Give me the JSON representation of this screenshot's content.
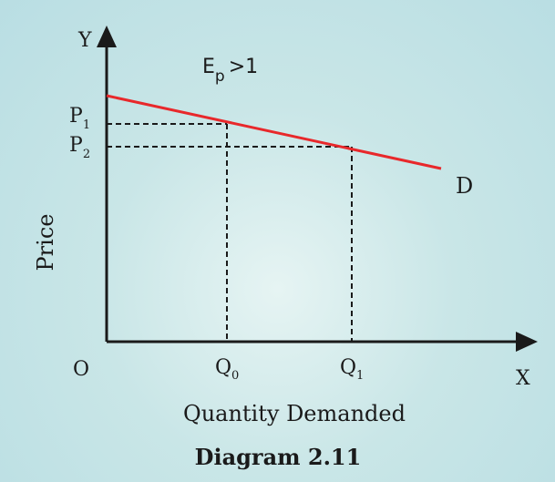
{
  "diagram": {
    "axis_y_label": "Y",
    "axis_x_label": "X",
    "origin_label": "O",
    "y_axis_title": "Price",
    "x_axis_title": "Quantity Demanded",
    "curve_label": "D",
    "elasticity_symbol": "E",
    "elasticity_subscript": "p",
    "elasticity_relation": ">1",
    "price_points": [
      {
        "letter": "P",
        "sub": "1"
      },
      {
        "letter": "P",
        "sub": "2"
      }
    ],
    "quantity_points": [
      {
        "letter": "Q",
        "sub": "0"
      },
      {
        "letter": "Q",
        "sub": "1"
      }
    ],
    "caption": "Diagram 2.11"
  },
  "colors": {
    "background": "#c9e6e7",
    "axis": "#1a1a1a",
    "demand_curve": "#e8282b",
    "guide_lines": "#1a1a1a"
  }
}
